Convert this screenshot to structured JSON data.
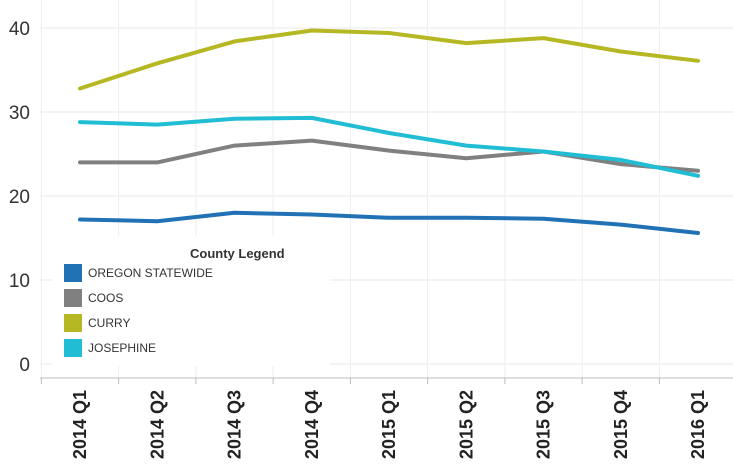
{
  "chart_data": {
    "type": "line",
    "title": "",
    "xlabel": "",
    "ylabel": "",
    "categories": [
      "2014 Q1",
      "2014 Q2",
      "2014 Q3",
      "2014 Q4",
      "2015 Q1",
      "2015 Q2",
      "2015 Q3",
      "2015 Q4",
      "2016 Q1"
    ],
    "y_ticks": [
      "0",
      "10",
      "20",
      "30",
      "40"
    ],
    "ylim": [
      0,
      40
    ],
    "grid": true,
    "legend": {
      "title": "County Legend",
      "position": "bottom-left"
    },
    "series": [
      {
        "name": "OREGON STATEWIDE",
        "color": "#2171b5",
        "values": [
          17.2,
          17.0,
          18.0,
          17.8,
          17.4,
          17.4,
          17.3,
          16.6,
          15.6
        ]
      },
      {
        "name": "COOS",
        "color": "#808080",
        "values": [
          24.0,
          24.0,
          26.0,
          26.6,
          25.4,
          24.5,
          25.3,
          23.8,
          23.0
        ]
      },
      {
        "name": "CURRY",
        "color": "#b5b823",
        "values": [
          32.8,
          35.8,
          38.4,
          39.7,
          39.4,
          38.2,
          38.8,
          37.2,
          36.1
        ]
      },
      {
        "name": "JOSEPHINE",
        "color": "#21bdd4",
        "values": [
          28.8,
          28.5,
          29.2,
          29.3,
          27.5,
          26.0,
          25.3,
          24.3,
          22.4
        ]
      }
    ]
  }
}
